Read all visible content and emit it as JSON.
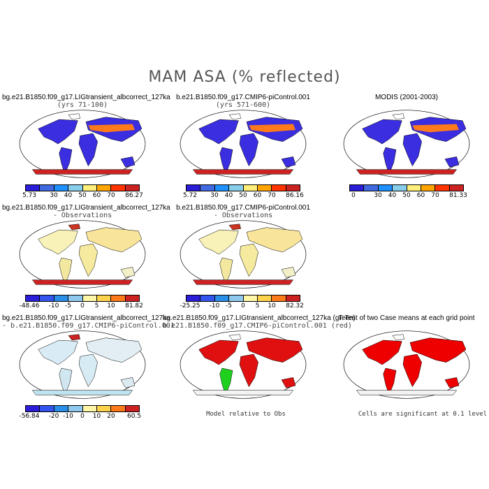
{
  "figure_title": "MAM ASA (% reflected)",
  "panels": [
    {
      "title": "bg.e21.B1850.f09_g17.LIGtransient_albcorrect_127ka",
      "subtitle": "(yrs 71-100)",
      "labels": [
        "5.73",
        "30",
        "40",
        "50",
        "60",
        "70",
        "86.27"
      ],
      "colors": [
        "#2b1dd8",
        "#4169e1",
        "#1e90ff",
        "#87ceeb",
        "#ffef7a",
        "#ffa500",
        "#ff3300",
        "#cc2222"
      ],
      "style": "abs"
    },
    {
      "title": "b.e21.B1850.f09_g17.CMIP6-piControl.001",
      "subtitle": "(yrs 571-600)",
      "labels": [
        "5.72",
        "30",
        "40",
        "50",
        "60",
        "70",
        "86.16"
      ],
      "colors": [
        "#2b1dd8",
        "#4169e1",
        "#1e90ff",
        "#87ceeb",
        "#ffef7a",
        "#ffa500",
        "#ff3300",
        "#cc2222"
      ],
      "style": "abs"
    },
    {
      "title": "MODIS (2001-2003)",
      "subtitle": "",
      "labels": [
        "0",
        "30",
        "40",
        "50",
        "60",
        "70",
        "81.33"
      ],
      "colors": [
        "#2b1dd8",
        "#4169e1",
        "#1e90ff",
        "#87ceeb",
        "#ffef7a",
        "#ffa500",
        "#ff3300",
        "#cc2222"
      ],
      "style": "abs"
    },
    {
      "title": "bg.e21.B1850.f09_g17.LIGtransient_albcorrect_127ka",
      "subtitle": "- Observations",
      "labels": [
        "-48.46",
        "-10",
        "-5",
        "0",
        "5",
        "10",
        "81.82"
      ],
      "colors": [
        "#2b1dd8",
        "#3355ee",
        "#2a8fe8",
        "#8fc9ef",
        "#fff6a8",
        "#ffd24d",
        "#ff7a1a",
        "#cc2222"
      ],
      "style": "diff"
    },
    {
      "title": "b.e21.B1850.f09_g17.CMIP6-piControl.001",
      "subtitle": "- Observations",
      "labels": [
        "-25.25",
        "-10",
        "-5",
        "0",
        "5",
        "10",
        "82.32"
      ],
      "colors": [
        "#2b1dd8",
        "#3355ee",
        "#2a8fe8",
        "#8fc9ef",
        "#fff6a8",
        "#ffd24d",
        "#ff7a1a",
        "#cc2222"
      ],
      "style": "diff"
    },
    {
      "title": "",
      "subtitle": "",
      "labels": [],
      "colors": [],
      "style": "none"
    },
    {
      "title": "bg.e21.B1850.f09_g17.LIGtransient_albcorrect_127ka",
      "subtitle": "- b.e21.B1850.f09_g17.CMIP6-piControl.001",
      "labels": [
        "-56.84",
        "-20",
        "-10",
        "0",
        "10",
        "20",
        "60.5"
      ],
      "colors": [
        "#2b1dd8",
        "#3355ee",
        "#2a8fe8",
        "#8fc9ef",
        "#fff6a8",
        "#ffd24d",
        "#ff7a1a",
        "#cc2222"
      ],
      "style": "diff2"
    },
    {
      "title": "bg.e21.B1850.f09_g17.LIGtransient_albcorrect_127ka (green)",
      "subtitle": "b.e21.B1850.f09_g17.CMIP6-piControl.001 (red)",
      "labels": [],
      "colors": [],
      "style": "rg"
    },
    {
      "title": "T-Test of two Case means at each grid point",
      "subtitle": "",
      "labels": [],
      "colors": [],
      "style": "ttest"
    }
  ],
  "notes": {
    "model_relative": "Model relative to Obs",
    "significance": "Cells are significant at 0.1 level"
  }
}
